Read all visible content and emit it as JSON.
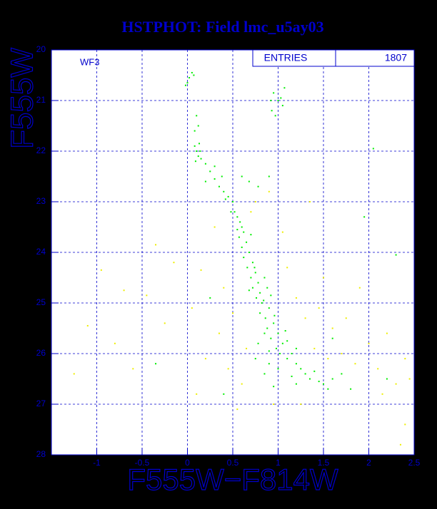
{
  "chart_data": {
    "type": "scatter",
    "title": "HSTPHOT: Field lmc_u5ay03",
    "x_label": "F555W−F814W",
    "y_label": "F555W",
    "annotation": "WF3",
    "stats_label": "ENTRIES",
    "stats_value": 1807,
    "xlim": [
      -1.5,
      2.5
    ],
    "ylim": [
      20,
      28
    ],
    "y_inverted": true,
    "xticks": [
      -1,
      -0.5,
      0,
      0.5,
      1,
      1.5,
      2,
      2.5
    ],
    "yticks": [
      20,
      21,
      22,
      23,
      24,
      25,
      26,
      27,
      28
    ],
    "grid": true,
    "series": [
      {
        "color": "#00ee00",
        "x": [
          0.0,
          0.02,
          0.05,
          0.07,
          -0.02,
          0.95,
          1.0,
          1.03,
          0.93,
          1.05,
          0.97,
          0.92,
          1.07,
          0.08,
          0.1,
          0.12,
          0.08,
          0.1,
          0.12,
          0.14,
          0.09,
          0.13,
          0.15,
          0.2,
          0.25,
          0.3,
          0.35,
          0.4,
          0.45,
          0.5,
          0.3,
          0.38,
          0.42,
          0.6,
          0.68,
          0.78,
          0.9,
          0.2,
          0.48,
          0.52,
          0.55,
          0.58,
          0.6,
          0.62,
          0.57,
          0.65,
          0.6,
          0.68,
          0.62,
          0.7,
          0.55,
          0.72,
          0.66,
          0.75,
          0.7,
          0.78,
          0.72,
          0.8,
          0.85,
          0.76,
          0.82,
          0.88,
          0.74,
          0.9,
          0.8,
          0.84,
          0.92,
          0.86,
          0.68,
          0.95,
          0.88,
          1.0,
          0.92,
          1.05,
          0.98,
          1.1,
          0.9,
          1.02,
          1.15,
          0.85,
          1.08,
          0.78,
          1.2,
          0.96,
          1.1,
          1.2,
          1.25,
          1.3,
          1.35,
          1.4,
          1.45,
          1.5,
          1.15,
          1.0,
          0.9,
          1.55,
          1.6,
          0.85,
          0.75,
          1.2,
          1.7,
          0.95,
          2.05,
          2.3,
          1.95,
          -0.35,
          0.4,
          1.8,
          2.2,
          0.25,
          1.6
        ],
        "values": [
          20.65,
          20.55,
          20.45,
          20.5,
          20.7,
          20.85,
          21.0,
          20.95,
          21.2,
          21.1,
          21.3,
          21.0,
          20.75,
          21.6,
          21.3,
          21.5,
          21.9,
          22.0,
          22.1,
          22.0,
          22.2,
          21.85,
          22.15,
          22.25,
          22.4,
          22.55,
          22.7,
          22.8,
          22.9,
          23.0,
          22.3,
          22.5,
          22.95,
          22.5,
          22.6,
          22.7,
          22.5,
          22.6,
          23.2,
          23.2,
          23.3,
          23.4,
          23.5,
          23.6,
          23.7,
          23.8,
          23.9,
          24.0,
          24.1,
          23.65,
          23.55,
          24.2,
          24.3,
          24.4,
          24.5,
          24.6,
          24.7,
          24.8,
          24.5,
          24.9,
          25.0,
          24.7,
          24.3,
          25.1,
          25.2,
          24.95,
          24.85,
          25.3,
          24.75,
          25.4,
          25.5,
          25.6,
          25.7,
          25.8,
          25.9,
          25.75,
          25.95,
          26.0,
          26.0,
          25.6,
          25.55,
          25.8,
          25.9,
          25.25,
          26.1,
          26.2,
          26.3,
          26.4,
          26.5,
          26.35,
          26.55,
          26.6,
          26.45,
          26.3,
          26.2,
          26.7,
          26.5,
          26.4,
          26.1,
          26.6,
          26.4,
          26.65,
          21.95,
          24.05,
          23.3,
          26.2,
          26.8,
          26.7,
          26.5,
          24.9,
          25.7
        ]
      },
      {
        "color": "#eeee00",
        "x": [
          -1.25,
          -1.1,
          -0.95,
          -0.7,
          -0.6,
          -0.45,
          -0.35,
          -0.25,
          -0.15,
          0.05,
          0.15,
          0.2,
          0.3,
          0.35,
          0.4,
          0.45,
          0.5,
          0.55,
          0.6,
          0.7,
          0.75,
          0.9,
          1.1,
          1.2,
          1.3,
          1.4,
          1.45,
          1.5,
          1.55,
          1.6,
          1.7,
          1.75,
          1.85,
          1.9,
          2.0,
          2.1,
          2.2,
          2.3,
          2.4,
          2.45,
          2.4,
          2.35,
          1.35,
          1.05,
          -0.8,
          0.1,
          0.65,
          0.95,
          1.25,
          2.15
        ],
        "values": [
          26.4,
          25.45,
          24.35,
          24.75,
          26.3,
          24.85,
          23.85,
          25.4,
          24.2,
          25.1,
          24.35,
          26.1,
          23.5,
          25.6,
          24.7,
          26.3,
          25.2,
          27.1,
          26.6,
          23.2,
          23.0,
          22.8,
          24.3,
          24.9,
          25.3,
          25.9,
          25.1,
          24.5,
          26.1,
          25.5,
          26.0,
          25.3,
          26.2,
          24.7,
          25.8,
          26.3,
          25.6,
          26.6,
          26.1,
          26.5,
          27.4,
          27.8,
          23.0,
          23.6,
          25.8,
          26.8,
          25.9,
          27.0,
          27.0,
          26.8
        ]
      }
    ]
  }
}
